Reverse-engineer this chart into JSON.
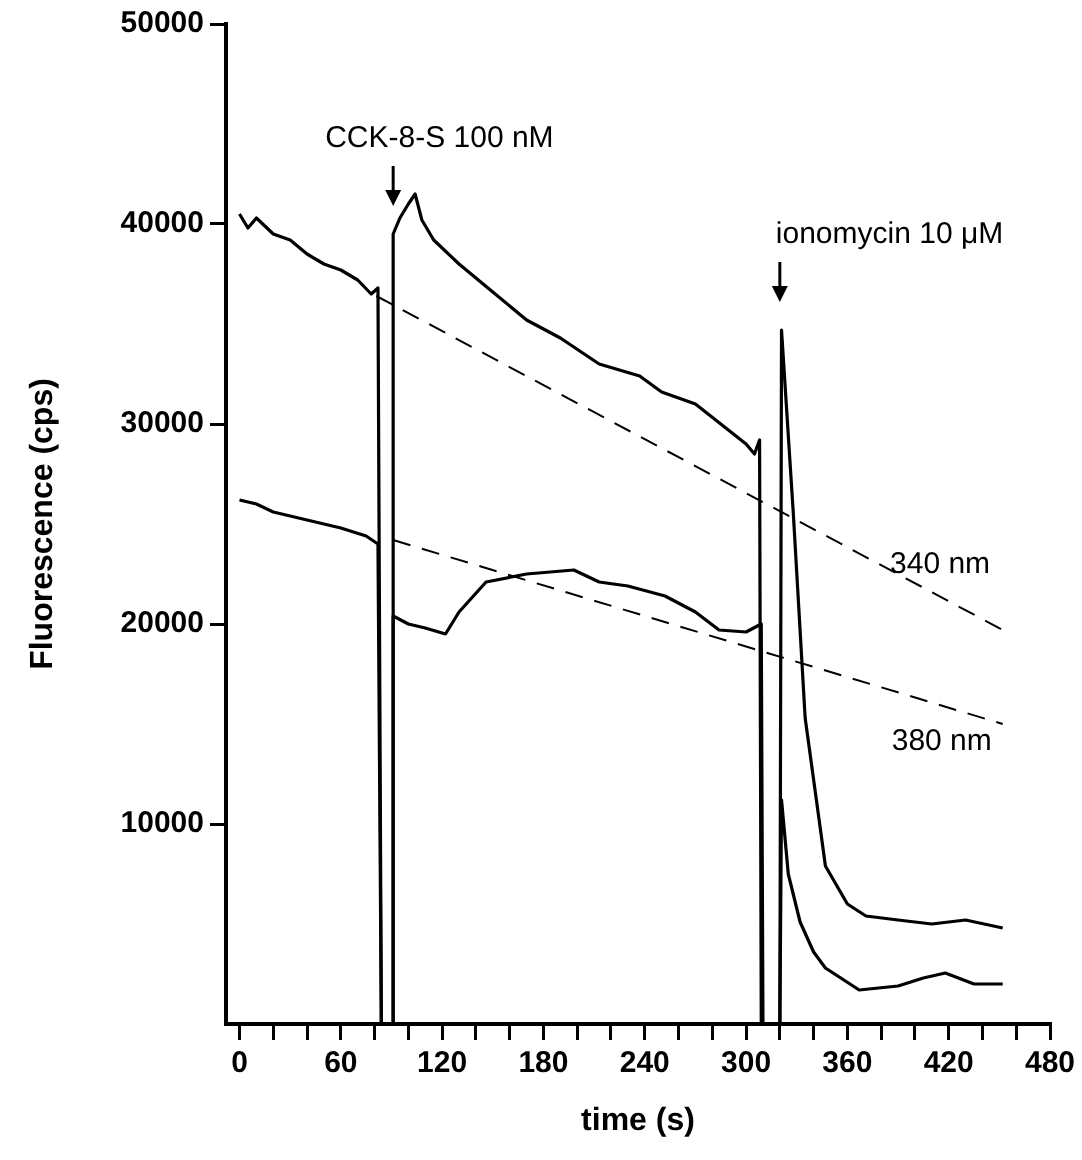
{
  "chart_data": {
    "type": "line",
    "xlabel": "time (s)",
    "ylabel": "Fluorescence (cps)",
    "xlim": [
      -8,
      480
    ],
    "ylim": [
      0,
      50000
    ],
    "xticks": [
      0,
      {
        "value": 20,
        "label": null
      },
      {
        "value": 40,
        "label": null
      },
      60,
      {
        "value": 80,
        "label": null
      },
      {
        "value": 100,
        "label": null
      },
      120,
      {
        "value": 140,
        "label": null
      },
      {
        "value": 160,
        "label": null
      },
      180,
      {
        "value": 200,
        "label": null
      },
      {
        "value": 220,
        "label": null
      },
      240,
      {
        "value": 260,
        "label": null
      },
      {
        "value": 280,
        "label": null
      },
      300,
      {
        "value": 320,
        "label": null
      },
      {
        "value": 340,
        "label": null
      },
      360,
      {
        "value": 380,
        "label": null
      },
      {
        "value": 400,
        "label": null
      },
      420,
      {
        "value": 440,
        "label": null
      },
      {
        "value": 460,
        "label": null
      },
      480
    ],
    "yticks": [
      10000,
      20000,
      30000,
      40000,
      50000
    ],
    "line_style": "solid",
    "series": [
      {
        "color": "#000000",
        "x": [
          0,
          5,
          10,
          20,
          30,
          40,
          50,
          60,
          70,
          78,
          82,
          84,
          91,
          91,
          95,
          100,
          104,
          108,
          115,
          130,
          150,
          170,
          190,
          213,
          237,
          250,
          270,
          285,
          300,
          305,
          308,
          309,
          320,
          321,
          328,
          335,
          347,
          360,
          371,
          390,
          410,
          430,
          452
        ],
        "values": [
          40500,
          39800,
          40300,
          39500,
          39200,
          38500,
          38000,
          37700,
          37200,
          36500,
          36800,
          0,
          0,
          39500,
          40300,
          41000,
          41500,
          40200,
          39200,
          38000,
          36600,
          35200,
          34300,
          33000,
          32400,
          31600,
          31000,
          30000,
          29000,
          28500,
          29200,
          0,
          0,
          34700,
          25500,
          15300,
          7900,
          6000,
          5400,
          5200,
          5000,
          5200,
          4800
        ]
      },
      {
        "color": "#000000",
        "x": [
          0,
          10,
          20,
          40,
          60,
          75,
          82,
          84,
          91,
          91,
          100,
          110,
          122,
          130,
          146,
          170,
          198,
          213,
          230,
          252,
          270,
          284,
          300,
          309,
          310,
          320,
          321,
          325,
          332,
          340,
          347,
          367,
          390,
          405,
          418,
          435,
          452
        ],
        "values": [
          26200,
          26000,
          25600,
          25200,
          24800,
          24400,
          24000,
          0,
          0,
          20400,
          20000,
          19800,
          19500,
          20600,
          22100,
          22500,
          22700,
          22100,
          21900,
          21400,
          20600,
          19700,
          19600,
          20000,
          0,
          0,
          11200,
          7500,
          5100,
          3600,
          2800,
          1700,
          1900,
          2300,
          2550,
          2000,
          2000
        ]
      },
      {
        "name": "340 nm",
        "color": "#000000",
        "line_style": "dashed",
        "x": [
          81,
          452
        ],
        "values": [
          36400,
          19700
        ]
      },
      {
        "name": "380 nm",
        "color": "#000000",
        "line_style": "dashed",
        "x": [
          91,
          452
        ],
        "values": [
          24200,
          15000
        ]
      }
    ],
    "annotations": [
      {
        "text": "CCK-8-S 100 nM",
        "x": 91,
        "y": 39500
      },
      {
        "text": "ionomycin 10 μM",
        "x": 320,
        "y": 34700
      }
    ]
  }
}
